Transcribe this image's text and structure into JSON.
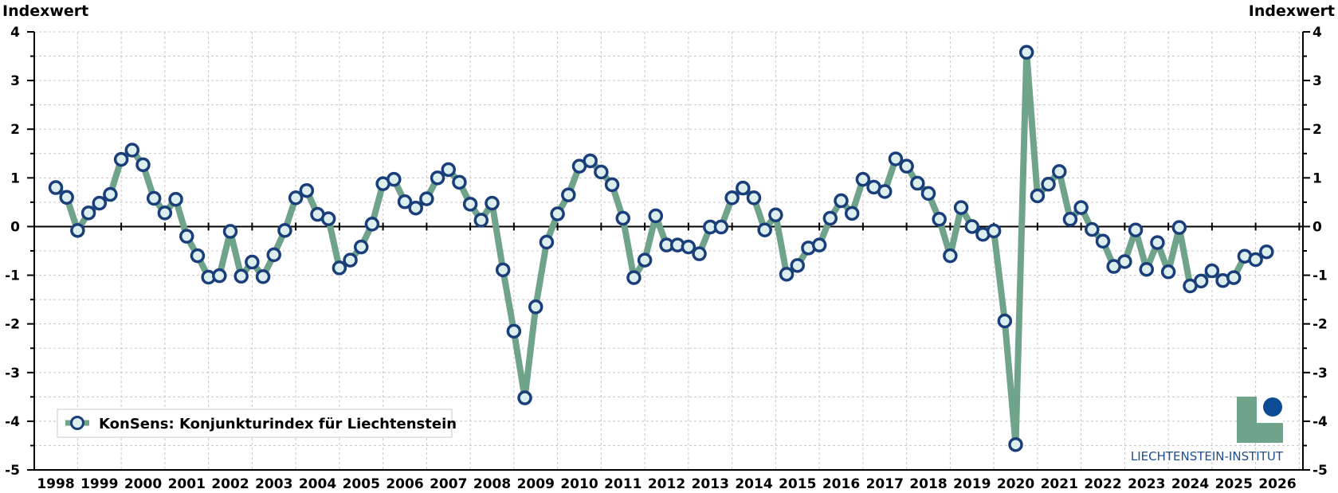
{
  "chart_data": {
    "type": "line",
    "ylabel_left": "Indexwert",
    "ylabel_right": "Indexwert",
    "ylim": [
      -5,
      4
    ],
    "yticks": [
      "4",
      "3",
      "2",
      "1",
      "0",
      "-1",
      "-2",
      "-3",
      "-4",
      "-5"
    ],
    "xticks": [
      "1998",
      "1999",
      "2000",
      "2001",
      "2002",
      "2003",
      "2004",
      "2005",
      "2006",
      "2007",
      "2008",
      "2009",
      "2010",
      "2011",
      "2012",
      "2013",
      "2014",
      "2015",
      "2016",
      "2017",
      "2018",
      "2019",
      "2020",
      "2021",
      "2022",
      "2023",
      "2024",
      "2025",
      "2026"
    ],
    "xlim": [
      1998,
      2026
    ],
    "grid": true,
    "legend_position": "bottom-left",
    "series": [
      {
        "name": "KonSens: Konjunkturindex für Liechtenstein",
        "color": "#6fa38a",
        "marker_edge": "#1a3e7a",
        "marker_face": "#dceeee",
        "x": [
          1998.0,
          1998.25,
          1998.5,
          1998.75,
          1999.0,
          1999.25,
          1999.5,
          1999.75,
          2000.0,
          2000.25,
          2000.5,
          2000.75,
          2001.0,
          2001.25,
          2001.5,
          2001.75,
          2002.0,
          2002.25,
          2002.5,
          2002.75,
          2003.0,
          2003.25,
          2003.5,
          2003.75,
          2004.0,
          2004.25,
          2004.5,
          2004.75,
          2005.0,
          2005.25,
          2005.5,
          2005.75,
          2006.0,
          2006.25,
          2006.5,
          2006.75,
          2007.0,
          2007.25,
          2007.5,
          2007.75,
          2008.0,
          2008.25,
          2008.5,
          2008.75,
          2009.0,
          2009.25,
          2009.5,
          2009.75,
          2010.0,
          2010.25,
          2010.5,
          2010.75,
          2011.0,
          2011.25,
          2011.5,
          2011.75,
          2012.0,
          2012.25,
          2012.5,
          2012.75,
          2013.0,
          2013.25,
          2013.5,
          2013.75,
          2014.0,
          2014.25,
          2014.5,
          2014.75,
          2015.0,
          2015.25,
          2015.5,
          2015.75,
          2016.0,
          2016.25,
          2016.5,
          2016.75,
          2017.0,
          2017.25,
          2017.5,
          2017.75,
          2018.0,
          2018.25,
          2018.5,
          2018.75,
          2019.0,
          2019.25,
          2019.5,
          2019.75,
          2020.0,
          2020.25,
          2020.5,
          2020.75,
          2021.0,
          2021.25,
          2021.5,
          2021.75,
          2022.0,
          2022.25,
          2022.5,
          2022.75,
          2023.0,
          2023.25,
          2023.5,
          2023.75,
          2024.0,
          2024.25,
          2024.5,
          2024.75,
          2025.0,
          2025.25,
          2025.5,
          2025.75
        ],
        "values": [
          0.8,
          0.6,
          -0.08,
          0.28,
          0.48,
          0.66,
          1.38,
          1.57,
          1.27,
          0.58,
          0.28,
          0.56,
          -0.2,
          -0.6,
          -1.04,
          -1.01,
          -0.1,
          -1.02,
          -0.73,
          -1.03,
          -0.58,
          -0.08,
          0.59,
          0.74,
          0.25,
          0.16,
          -0.85,
          -0.69,
          -0.42,
          0.05,
          0.88,
          0.97,
          0.51,
          0.38,
          0.57,
          1.0,
          1.17,
          0.91,
          0.46,
          0.13,
          0.48,
          -0.89,
          -2.15,
          -3.52,
          -1.65,
          -0.32,
          0.26,
          0.65,
          1.24,
          1.35,
          1.12,
          0.86,
          0.17,
          -1.05,
          -0.69,
          0.22,
          -0.38,
          -0.38,
          -0.42,
          -0.56,
          -0.01,
          -0.01,
          0.59,
          0.79,
          0.59,
          -0.07,
          0.24,
          -0.98,
          -0.8,
          -0.44,
          -0.38,
          0.17,
          0.53,
          0.27,
          0.97,
          0.81,
          0.72,
          1.39,
          1.24,
          0.89,
          0.68,
          0.15,
          -0.6,
          0.39,
          0.0,
          -0.16,
          -0.09,
          -1.94,
          -4.48,
          3.58,
          0.63,
          0.87,
          1.13,
          0.15,
          0.39,
          -0.06,
          -0.3,
          -0.82,
          -0.72,
          -0.07,
          -0.88,
          -0.33,
          -0.93,
          -0.02,
          -1.22,
          -1.12,
          -0.91,
          -1.11,
          -1.05,
          -0.61,
          -0.68,
          -0.52
        ]
      }
    ]
  },
  "legend": {
    "label": "KonSens: Konjunkturindex für Liechtenstein"
  },
  "logo": {
    "text": "LIECHTENSTEIN-INSTITUT",
    "color_green": "#6fa38a",
    "color_blue": "#0d4b94"
  }
}
